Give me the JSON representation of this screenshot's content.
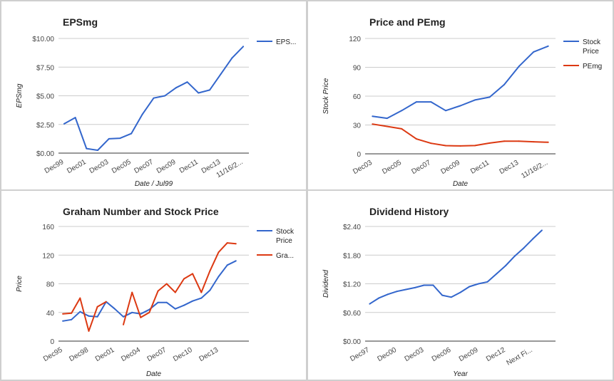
{
  "colors": {
    "blue": "#3366cc",
    "red": "#dc3912",
    "grid": "#cccccc",
    "axis": "#333333",
    "text": "#222222",
    "tick": "#444444"
  },
  "chart_data": [
    {
      "type": "line",
      "title": "EPSmg",
      "xlabel": "Date / Jul99",
      "ylabel": "EPSmg",
      "ylim": [
        0,
        10
      ],
      "yticks": [
        "$0.00",
        "$2.50",
        "$5.00",
        "$7.50",
        "$10.00"
      ],
      "yticks_values": [
        0,
        2.5,
        5,
        7.5,
        10
      ],
      "xticks": [
        "Dec99",
        "Dec01",
        "Dec03",
        "Dec05",
        "Dec07",
        "Dec09",
        "Dec11",
        "Dec13",
        "11/16/2..."
      ],
      "x_count": 17,
      "xtick_positions": [
        0,
        2,
        4,
        6,
        8,
        10,
        12,
        14,
        16
      ],
      "legend_position": "right",
      "series": [
        {
          "name": "EPS...",
          "values": [
            2.55,
            3.1,
            0.4,
            0.25,
            1.25,
            1.3,
            1.7,
            3.4,
            4.8,
            5.0,
            5.7,
            6.2,
            5.25,
            5.5,
            6.9,
            8.3,
            9.3
          ]
        }
      ]
    },
    {
      "type": "line",
      "title": "Price and PEmg",
      "xlabel": "Date",
      "ylabel": "Stock Price",
      "ylim": [
        0,
        120
      ],
      "yticks": [
        "0",
        "30",
        "60",
        "90",
        "120"
      ],
      "yticks_values": [
        0,
        30,
        60,
        90,
        120
      ],
      "xticks": [
        "Dec03",
        "Dec05",
        "Dec07",
        "Dec09",
        "Dec11",
        "Dec13",
        "11/16/2..."
      ],
      "x_count": 13,
      "xtick_positions": [
        0,
        2,
        4,
        6,
        8,
        10,
        12
      ],
      "legend_position": "right",
      "series": [
        {
          "name": "Stock Price",
          "legend_lines": [
            "Stock",
            "Price"
          ],
          "values": [
            39,
            37,
            45,
            54,
            54,
            45,
            50,
            56,
            59,
            72,
            91,
            106,
            112
          ]
        },
        {
          "name": "PEmg",
          "values": [
            31,
            28.5,
            26,
            15.5,
            11,
            8.5,
            8.2,
            8.6,
            11.2,
            13.1,
            13.2,
            12.5,
            12
          ]
        }
      ]
    },
    {
      "type": "line",
      "title": "Graham Number and Stock Price",
      "xlabel": "Date",
      "ylabel": "Price",
      "ylim": [
        0,
        160
      ],
      "yticks": [
        "0",
        "40",
        "80",
        "120",
        "160"
      ],
      "yticks_values": [
        0,
        40,
        80,
        120,
        160
      ],
      "xticks": [
        "Dec95",
        "Dec98",
        "Dec01",
        "Dec04",
        "Dec07",
        "Dec10",
        "Dec13"
      ],
      "x_count": 22,
      "xtick_positions": [
        0,
        3,
        6,
        9,
        12,
        15,
        18
      ],
      "legend_position": "right",
      "series": [
        {
          "name": "Stock Price",
          "legend_lines": [
            "Stock",
            "Price"
          ],
          "values": [
            28,
            30,
            41,
            35,
            34,
            55,
            45,
            34,
            40,
            38,
            44,
            54,
            54,
            45,
            50,
            56,
            60,
            71,
            90,
            106,
            112,
            null
          ]
        },
        {
          "name": "Gra...",
          "values": [
            38,
            39,
            60,
            14,
            48,
            55,
            null,
            23,
            68,
            33,
            40,
            70,
            80,
            68,
            87,
            94,
            68,
            98,
            124,
            137,
            136,
            null
          ]
        }
      ]
    },
    {
      "type": "line",
      "title": "Dividend History",
      "xlabel": "Year",
      "ylabel": "Dividend",
      "ylim": [
        0,
        2.4
      ],
      "yticks": [
        "$0.00",
        "$0.60",
        "$1.20",
        "$1.80",
        "$2.40"
      ],
      "yticks_values": [
        0,
        0.6,
        1.2,
        1.8,
        2.4
      ],
      "xticks": [
        "Dec97",
        "Dec00",
        "Dec03",
        "Dec06",
        "Dec09",
        "Dec12",
        "Next Fi..."
      ],
      "x_count": 21,
      "xtick_positions": [
        0,
        3,
        6,
        9,
        12,
        15,
        18
      ],
      "legend_position": "none",
      "series": [
        {
          "name": "",
          "values": [
            0.78,
            0.9,
            0.98,
            1.04,
            1.08,
            1.12,
            1.17,
            1.17,
            0.96,
            0.92,
            1.02,
            1.14,
            1.2,
            1.24,
            1.41,
            1.58,
            1.78,
            1.95,
            2.14,
            2.32,
            null
          ]
        }
      ]
    }
  ]
}
